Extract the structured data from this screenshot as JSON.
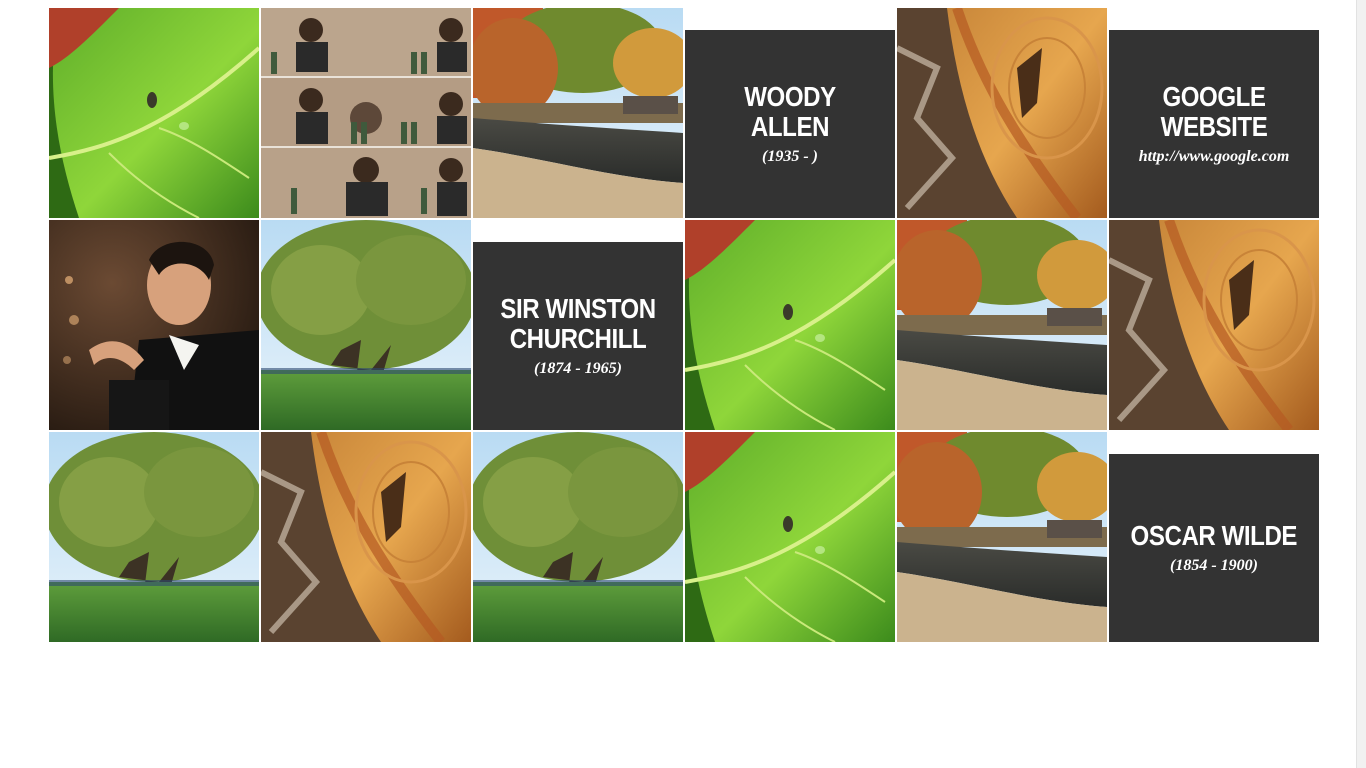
{
  "tiles": [
    {
      "kind": "image",
      "image": "leaf"
    },
    {
      "kind": "image",
      "image": "video-collage"
    },
    {
      "kind": "image",
      "image": "canal"
    },
    {
      "kind": "quote",
      "title": "WOODY ALLEN",
      "subtitle": "(1935 - )"
    },
    {
      "kind": "image",
      "image": "tree-stump"
    },
    {
      "kind": "quote",
      "title": "GOOGLE WEBSITE",
      "subtitle": "http://www.google.com"
    },
    {
      "kind": "image",
      "image": "conductor"
    },
    {
      "kind": "image",
      "image": "oak-tree"
    },
    {
      "kind": "quote",
      "title": "SIR WINSTON CHURCHILL",
      "subtitle": "(1874 - 1965)"
    },
    {
      "kind": "image",
      "image": "leaf"
    },
    {
      "kind": "image",
      "image": "canal"
    },
    {
      "kind": "image",
      "image": "tree-stump"
    },
    {
      "kind": "image",
      "image": "oak-tree"
    },
    {
      "kind": "image",
      "image": "tree-stump"
    },
    {
      "kind": "image",
      "image": "oak-tree"
    },
    {
      "kind": "image",
      "image": "leaf"
    },
    {
      "kind": "image",
      "image": "canal"
    },
    {
      "kind": "quote",
      "title": "OSCAR WILDE",
      "subtitle": "(1854 - 1900)"
    }
  ]
}
